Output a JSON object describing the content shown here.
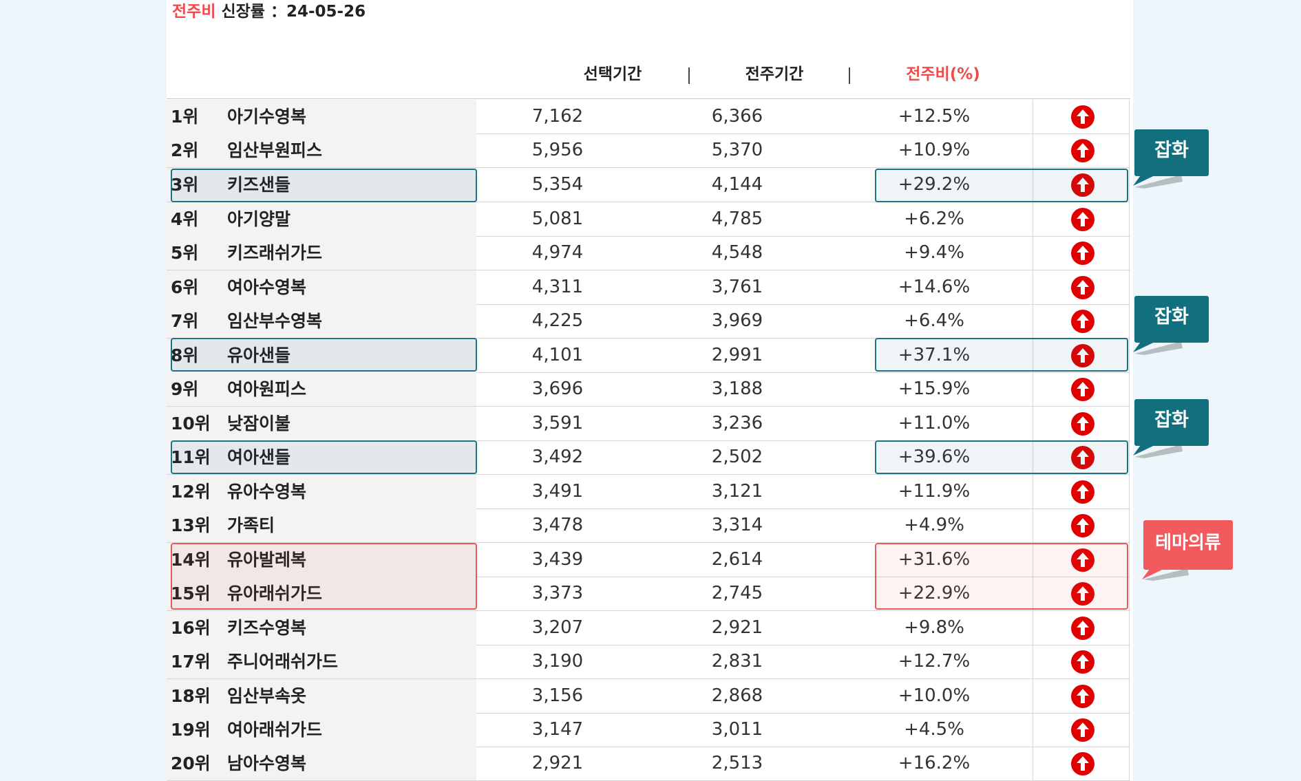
{
  "title": {
    "accent": "전주비",
    "text": " 신장률 ：24-05-26"
  },
  "headers": {
    "selected": "선택기간",
    "previous": "전주기간",
    "ratio": "전주비(%)",
    "separator": "|"
  },
  "colors": {
    "accent_red": "#ef4b4b",
    "teal": "#1c7383",
    "pink": "#e65a5a",
    "up_icon": "#e00000"
  },
  "rows": [
    {
      "rank": "1위",
      "name": "아기수영복",
      "selected": "7,162",
      "previous": "6,366",
      "ratio": "+12.5%",
      "trend_icon": "arrow-up-circle"
    },
    {
      "rank": "2위",
      "name": "임산부원피스",
      "selected": "5,956",
      "previous": "5,370",
      "ratio": "+10.9%",
      "trend_icon": "arrow-up-circle"
    },
    {
      "rank": "3위",
      "name": "키즈샌들",
      "selected": "5,354",
      "previous": "4,144",
      "ratio": "+29.2%",
      "trend_icon": "arrow-up-circle"
    },
    {
      "rank": "4위",
      "name": "아기양말",
      "selected": "5,081",
      "previous": "4,785",
      "ratio": "+6.2%",
      "trend_icon": "arrow-up-circle"
    },
    {
      "rank": "5위",
      "name": "키즈래쉬가드",
      "selected": "4,974",
      "previous": "4,548",
      "ratio": "+9.4%",
      "trend_icon": "arrow-up-circle"
    },
    {
      "rank": "6위",
      "name": "여아수영복",
      "selected": "4,311",
      "previous": "3,761",
      "ratio": "+14.6%",
      "trend_icon": "arrow-up-circle"
    },
    {
      "rank": "7위",
      "name": "임산부수영복",
      "selected": "4,225",
      "previous": "3,969",
      "ratio": "+6.4%",
      "trend_icon": "arrow-up-circle"
    },
    {
      "rank": "8위",
      "name": "유아샌들",
      "selected": "4,101",
      "previous": "2,991",
      "ratio": "+37.1%",
      "trend_icon": "arrow-up-circle"
    },
    {
      "rank": "9위",
      "name": "여아원피스",
      "selected": "3,696",
      "previous": "3,188",
      "ratio": "+15.9%",
      "trend_icon": "arrow-up-circle"
    },
    {
      "rank": "10위",
      "name": "낮잠이불",
      "selected": "3,591",
      "previous": "3,236",
      "ratio": "+11.0%",
      "trend_icon": "arrow-up-circle"
    },
    {
      "rank": "11위",
      "name": "여아샌들",
      "selected": "3,492",
      "previous": "2,502",
      "ratio": "+39.6%",
      "trend_icon": "arrow-up-circle"
    },
    {
      "rank": "12위",
      "name": "유아수영복",
      "selected": "3,491",
      "previous": "3,121",
      "ratio": "+11.9%",
      "trend_icon": "arrow-up-circle"
    },
    {
      "rank": "13위",
      "name": "가족티",
      "selected": "3,478",
      "previous": "3,314",
      "ratio": "+4.9%",
      "trend_icon": "arrow-up-circle"
    },
    {
      "rank": "14위",
      "name": "유아발레복",
      "selected": "3,439",
      "previous": "2,614",
      "ratio": "+31.6%",
      "trend_icon": "arrow-up-circle"
    },
    {
      "rank": "15위",
      "name": "유아래쉬가드",
      "selected": "3,373",
      "previous": "2,745",
      "ratio": "+22.9%",
      "trend_icon": "arrow-up-circle"
    },
    {
      "rank": "16위",
      "name": "키즈수영복",
      "selected": "3,207",
      "previous": "2,921",
      "ratio": "+9.8%",
      "trend_icon": "arrow-up-circle"
    },
    {
      "rank": "17위",
      "name": "주니어래쉬가드",
      "selected": "3,190",
      "previous": "2,831",
      "ratio": "+12.7%",
      "trend_icon": "arrow-up-circle"
    },
    {
      "rank": "18위",
      "name": "임산부속옷",
      "selected": "3,156",
      "previous": "2,868",
      "ratio": "+10.0%",
      "trend_icon": "arrow-up-circle"
    },
    {
      "rank": "19위",
      "name": "여아래쉬가드",
      "selected": "3,147",
      "previous": "3,011",
      "ratio": "+4.5%",
      "trend_icon": "arrow-up-circle"
    },
    {
      "rank": "20위",
      "name": "남아수영복",
      "selected": "2,921",
      "previous": "2,513",
      "ratio": "+16.2%",
      "trend_icon": "arrow-up-circle"
    }
  ],
  "callouts": [
    {
      "label": "잡화",
      "color": "teal"
    },
    {
      "label": "잡화",
      "color": "teal"
    },
    {
      "label": "잡화",
      "color": "teal"
    },
    {
      "label": "테마의류",
      "color": "pink"
    }
  ]
}
